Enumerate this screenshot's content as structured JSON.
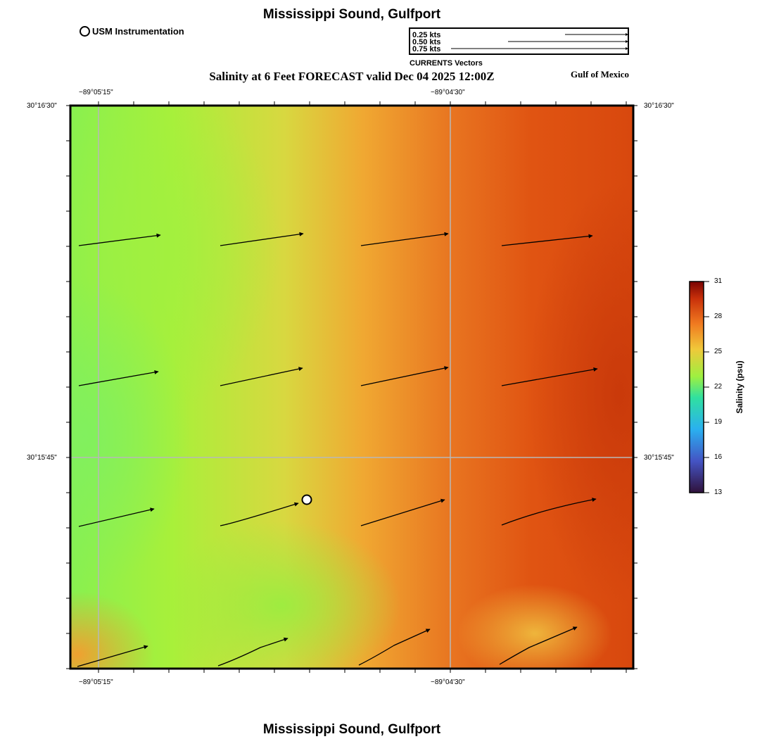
{
  "header": {
    "title": "Mississippi Sound, Gulfport",
    "instrument_legend": "USM Instrumentation",
    "plot_title": "Salinity at 6 Feet FORECAST valid Dec 04 2025 12:00Z",
    "region": "Gulf of Mexico"
  },
  "vector_reference": {
    "labels": [
      "0.25 kts",
      "0.50 kts",
      "0.75 kts"
    ],
    "caption": "CURRENTS Vectors"
  },
  "axes": {
    "top_ticks": [
      "−89°05'15\"",
      "−89°04'30\""
    ],
    "bottom_ticks": [
      "−89°05'15\"",
      "−89°04'30\""
    ],
    "left_ticks": [
      "30°16'30\"",
      "30°15'45\""
    ],
    "right_ticks": [
      "30°16'30\"",
      "30°15'45\""
    ]
  },
  "colorbar": {
    "title": "Salinity (psu)",
    "ticks": [
      "31",
      "28",
      "25",
      "22",
      "19",
      "16",
      "13"
    ],
    "range": [
      13,
      31
    ]
  },
  "footer": {
    "title": "Mississippi Sound, Gulfport"
  },
  "colors": {
    "fresh": "#7cf55a",
    "mid": "#e8c83a",
    "salty": "#e0500f",
    "max": "#c8360a"
  }
}
